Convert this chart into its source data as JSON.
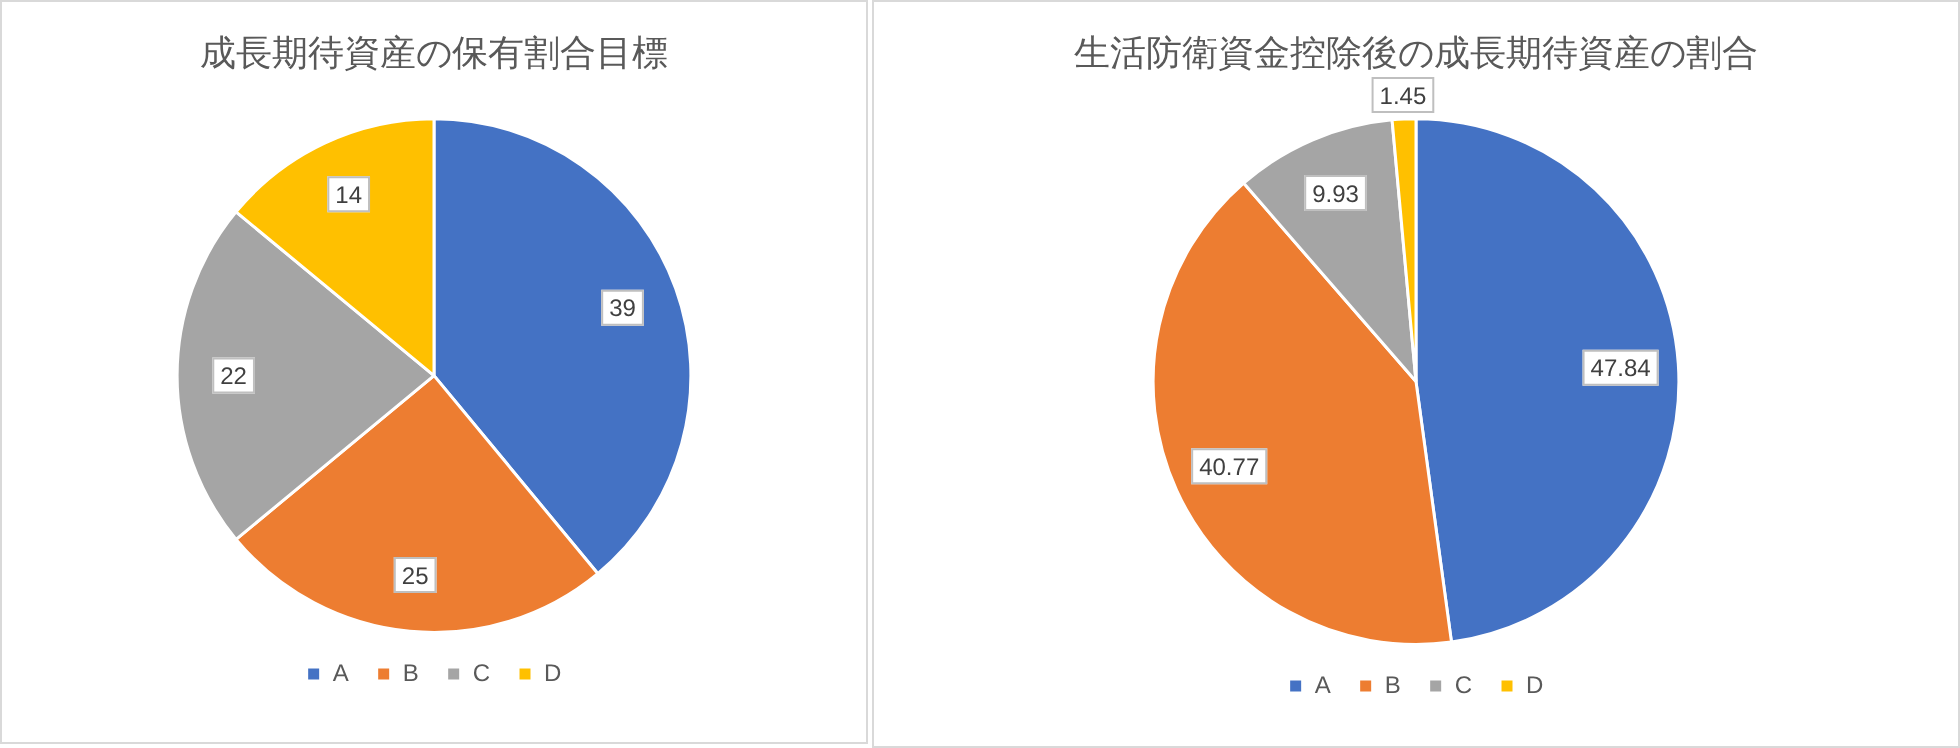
{
  "chart_data": [
    {
      "type": "pie",
      "title": "成長期待資産の保有割合目標",
      "categories": [
        "A",
        "B",
        "C",
        "D"
      ],
      "values": [
        39,
        25,
        22,
        14
      ],
      "colors": [
        "#4472c4",
        "#ed7d31",
        "#a5a5a5",
        "#ffc000"
      ],
      "data_labels": true,
      "legend": "bottom"
    },
    {
      "type": "pie",
      "title": "生活防衛資金控除後の成長期待資産の割合",
      "categories": [
        "A",
        "B",
        "C",
        "D"
      ],
      "values": [
        47.84,
        40.77,
        9.93,
        1.45
      ],
      "colors": [
        "#4472c4",
        "#ed7d31",
        "#a5a5a5",
        "#ffc000"
      ],
      "data_labels": true,
      "legend": "bottom"
    }
  ]
}
